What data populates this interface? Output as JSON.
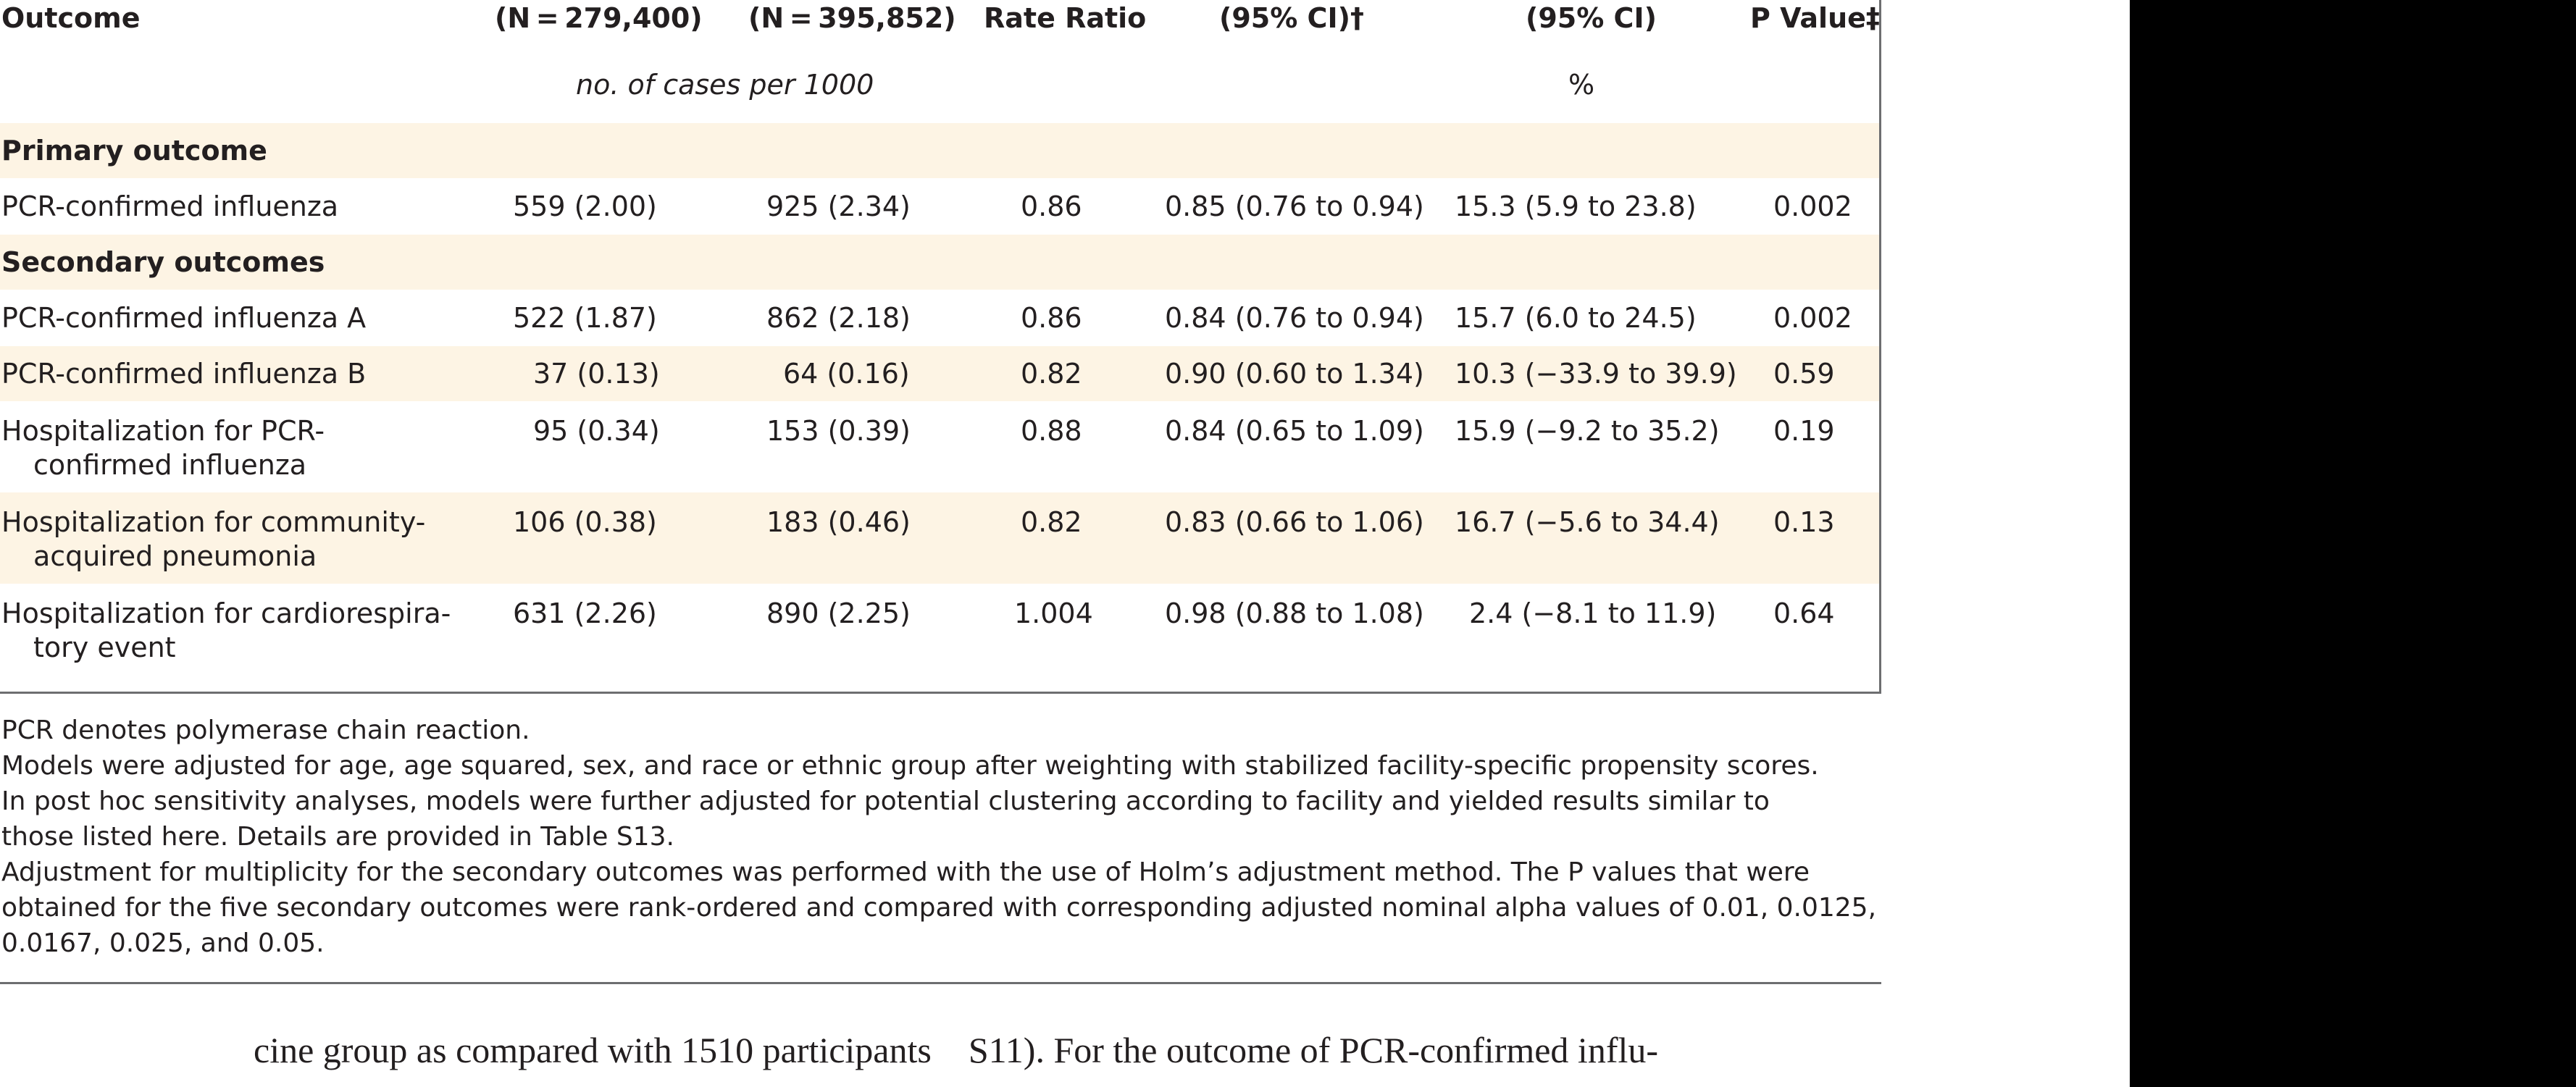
{
  "table": {
    "headers": {
      "outcome": "Outcome",
      "group1": "(N = 279,400)",
      "group2": "(N = 395,852)",
      "rate_ratio": "Rate Ratio",
      "adj_ci": "(95% CI)†",
      "ve_ci": "(95% CI)",
      "p_value": "P Value‡"
    },
    "units": {
      "cases": "no. of cases per 1000",
      "percent": "%"
    },
    "sections": {
      "primary": "Primary outcome",
      "secondary": "Secondary outcomes"
    },
    "rows": [
      {
        "outcome_line1": "PCR-confirmed influenza",
        "outcome_line2": "",
        "group1": "559 (2.00)",
        "group2": "925 (2.34)",
        "rate_ratio": "0.86",
        "adj_ci": "0.85 (0.76 to 0.94)",
        "ve_ci": "15.3 (5.9 to 23.8)",
        "p_value": "0.002"
      },
      {
        "outcome_line1": "PCR-confirmed influenza A",
        "outcome_line2": "",
        "group1": "522 (1.87)",
        "group2": "862 (2.18)",
        "rate_ratio": "0.86",
        "adj_ci": "0.84 (0.76 to 0.94)",
        "ve_ci": "15.7 (6.0 to 24.5)",
        "p_value": "0.002"
      },
      {
        "outcome_line1": "PCR-confirmed influenza B",
        "outcome_line2": "",
        "group1": "37 (0.13)",
        "group2": "64 (0.16)",
        "rate_ratio": "0.82",
        "adj_ci": "0.90 (0.60 to 1.34)",
        "ve_ci": "10.3 (−33.9 to 39.9)",
        "p_value": "0.59"
      },
      {
        "outcome_line1": "Hospitalization for PCR-",
        "outcome_line2": "confirmed influenza",
        "group1": "95 (0.34)",
        "group2": "153 (0.39)",
        "rate_ratio": "0.88",
        "adj_ci": "0.84 (0.65 to 1.09)",
        "ve_ci": "15.9 (−9.2 to 35.2)",
        "p_value": "0.19"
      },
      {
        "outcome_line1": "Hospitalization for community-",
        "outcome_line2": "acquired pneumonia",
        "group1": "106 (0.38)",
        "group2": "183 (0.46)",
        "rate_ratio": "0.82",
        "adj_ci": "0.83 (0.66 to 1.06)",
        "ve_ci": "16.7 (−5.6 to 34.4)",
        "p_value": "0.13"
      },
      {
        "outcome_line1": "Hospitalization for cardiorespira-",
        "outcome_line2": "tory event",
        "group1": "631 (2.26)",
        "group2": "890 (2.25)",
        "rate_ratio": "1.004",
        "adj_ci": "0.98 (0.88 to 1.08)",
        "ve_ci": "2.4 (−8.1 to 11.9)",
        "p_value": "0.64"
      }
    ]
  },
  "footnotes": [
    "PCR denotes polymerase chain reaction.",
    "Models were adjusted for age, age squared, sex, and race or ethnic group after weighting with stabilized facility-specific propensity scores.",
    "In post hoc sensitivity analyses, models were further adjusted for potential clustering according to facility and yielded results similar to",
    "those listed here. Details are provided in Table S13.",
    "Adjustment for multiplicity for the secondary outcomes was performed with the use of Holm’s adjustment method. The P values that were",
    "obtained for the five secondary outcomes were rank-ordered and compared with corresponding adjusted nominal alpha values of 0.01, 0.0125,",
    "0.0167, 0.025, and 0.05."
  ],
  "body_text": {
    "left": "cine group as compared with 1510 participants",
    "right": "S11). For the outcome of PCR-confirmed influ-"
  }
}
